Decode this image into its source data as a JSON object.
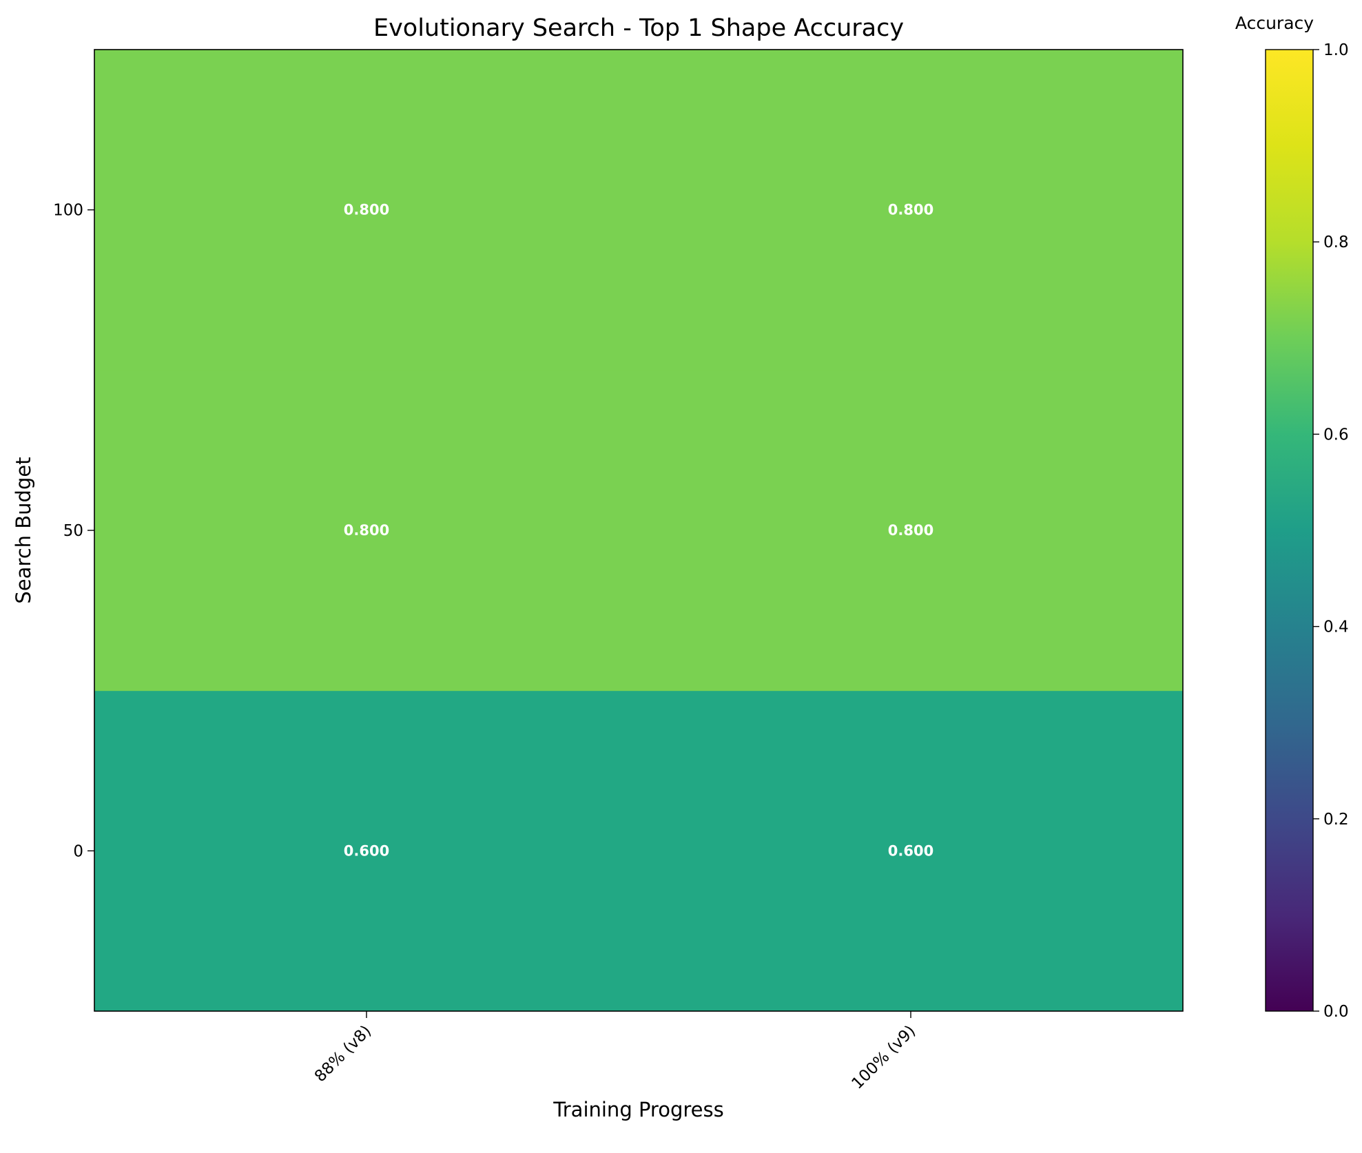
{
  "chart_data": {
    "type": "heatmap",
    "title": "Evolutionary Search - Top 1 Shape Accuracy",
    "xlabel": "Training Progress",
    "ylabel": "Search Budget",
    "x_categories": [
      "88% (v8)",
      "100% (v9)"
    ],
    "y_categories": [
      0,
      50,
      100
    ],
    "values": [
      [
        0.6,
        0.6
      ],
      [
        0.8,
        0.8
      ],
      [
        0.8,
        0.8
      ]
    ],
    "cell_labels": [
      [
        "0.600",
        "0.600"
      ],
      [
        "0.800",
        "0.800"
      ],
      [
        "0.800",
        "0.800"
      ]
    ],
    "ylim": [
      -25,
      125
    ],
    "y_ticks": [
      "0",
      "50",
      "100"
    ],
    "colormap": "viridis",
    "colorbar": {
      "label": "Accuracy",
      "range": [
        0.0,
        1.0
      ],
      "ticks": [
        "0.0",
        "0.2",
        "0.4",
        "0.6",
        "0.8",
        "1.0"
      ]
    },
    "colors": {
      "cell_0.6": "#22a884",
      "cell_0.8": "#7ad151"
    },
    "grid": false
  }
}
